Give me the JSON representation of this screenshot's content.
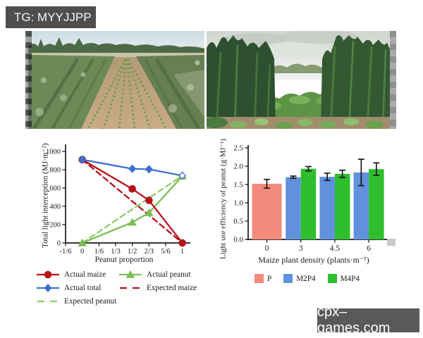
{
  "tag": {
    "label": "TG: MYYJJPP"
  },
  "watermark": {
    "label": "cpx–games.com"
  },
  "chart_data": [
    {
      "type": "line",
      "xlabel": "Peanut proportion",
      "ylabel": "Total light interception (MJ·m⁻²)",
      "xticks": [
        {
          "label": "-1/6",
          "value": -0.1667
        },
        {
          "label": "0",
          "value": 0
        },
        {
          "label": "1/6",
          "value": 0.1667
        },
        {
          "label": "1/3",
          "value": 0.3333
        },
        {
          "label": "1/2",
          "value": 0.5
        },
        {
          "label": "2/3",
          "value": 0.6667
        },
        {
          "label": "5/6",
          "value": 0.8333
        },
        {
          "label": "1",
          "value": 1
        }
      ],
      "yticks": [
        0,
        200,
        400,
        600,
        800,
        1000
      ],
      "ylim": [
        0,
        1080
      ],
      "xlim": [
        -0.1667,
        1.08
      ],
      "grid": false,
      "legend_position": "below",
      "series": [
        {
          "name": "Actual maize",
          "color": "#b5121a",
          "line": "solid",
          "marker": "circle",
          "x": [
            0,
            0.5,
            0.6667,
            1
          ],
          "y": [
            910,
            590,
            465,
            0
          ]
        },
        {
          "name": "Actual total",
          "color": "#3e6fcf",
          "line": "solid",
          "marker": "diamond",
          "x": [
            0,
            0.5,
            0.6667,
            1
          ],
          "y": [
            910,
            810,
            805,
            735
          ]
        },
        {
          "name": "Actual peanut",
          "color": "#7abf53",
          "line": "solid",
          "marker": "triangle",
          "x": [
            0,
            0.5,
            0.6667,
            1
          ],
          "y": [
            0,
            225,
            330,
            730
          ]
        },
        {
          "name": "Expected maize",
          "color": "#b5121a",
          "line": "dashed",
          "marker": "none",
          "x": [
            0,
            1
          ],
          "y": [
            910,
            0
          ]
        },
        {
          "name": "Expected peanut",
          "color": "#8fcb65",
          "line": "dashed",
          "marker": "none",
          "x": [
            0,
            1
          ],
          "y": [
            0,
            735
          ]
        }
      ],
      "legend_order": [
        0,
        2,
        1,
        3,
        4
      ]
    },
    {
      "type": "bar",
      "xlabel": "Maize plant density (plants·m⁻¹)",
      "ylabel": "Light use efficiency of peanut (g·MJ⁻¹)",
      "categories": [
        "0",
        "3",
        "4.5",
        "6"
      ],
      "yticks": [
        0,
        0.5,
        1,
        1.5,
        2,
        2.5
      ],
      "ylim": [
        0,
        2.6
      ],
      "grid": false,
      "legend_position": "below",
      "series": [
        {
          "name": "P",
          "color": "#f28b7d",
          "values": [
            1.52,
            null,
            null,
            null
          ],
          "errors": [
            0.12,
            null,
            null,
            null
          ]
        },
        {
          "name": "M2P4",
          "color": "#6191dc",
          "values": [
            null,
            1.7,
            1.71,
            1.83
          ],
          "errors": [
            null,
            0.03,
            0.1,
            0.36
          ]
        },
        {
          "name": "M4P4",
          "color": "#2ebe2e",
          "values": [
            null,
            1.93,
            1.79,
            1.92
          ],
          "errors": [
            null,
            0.06,
            0.1,
            0.17
          ]
        }
      ]
    }
  ]
}
